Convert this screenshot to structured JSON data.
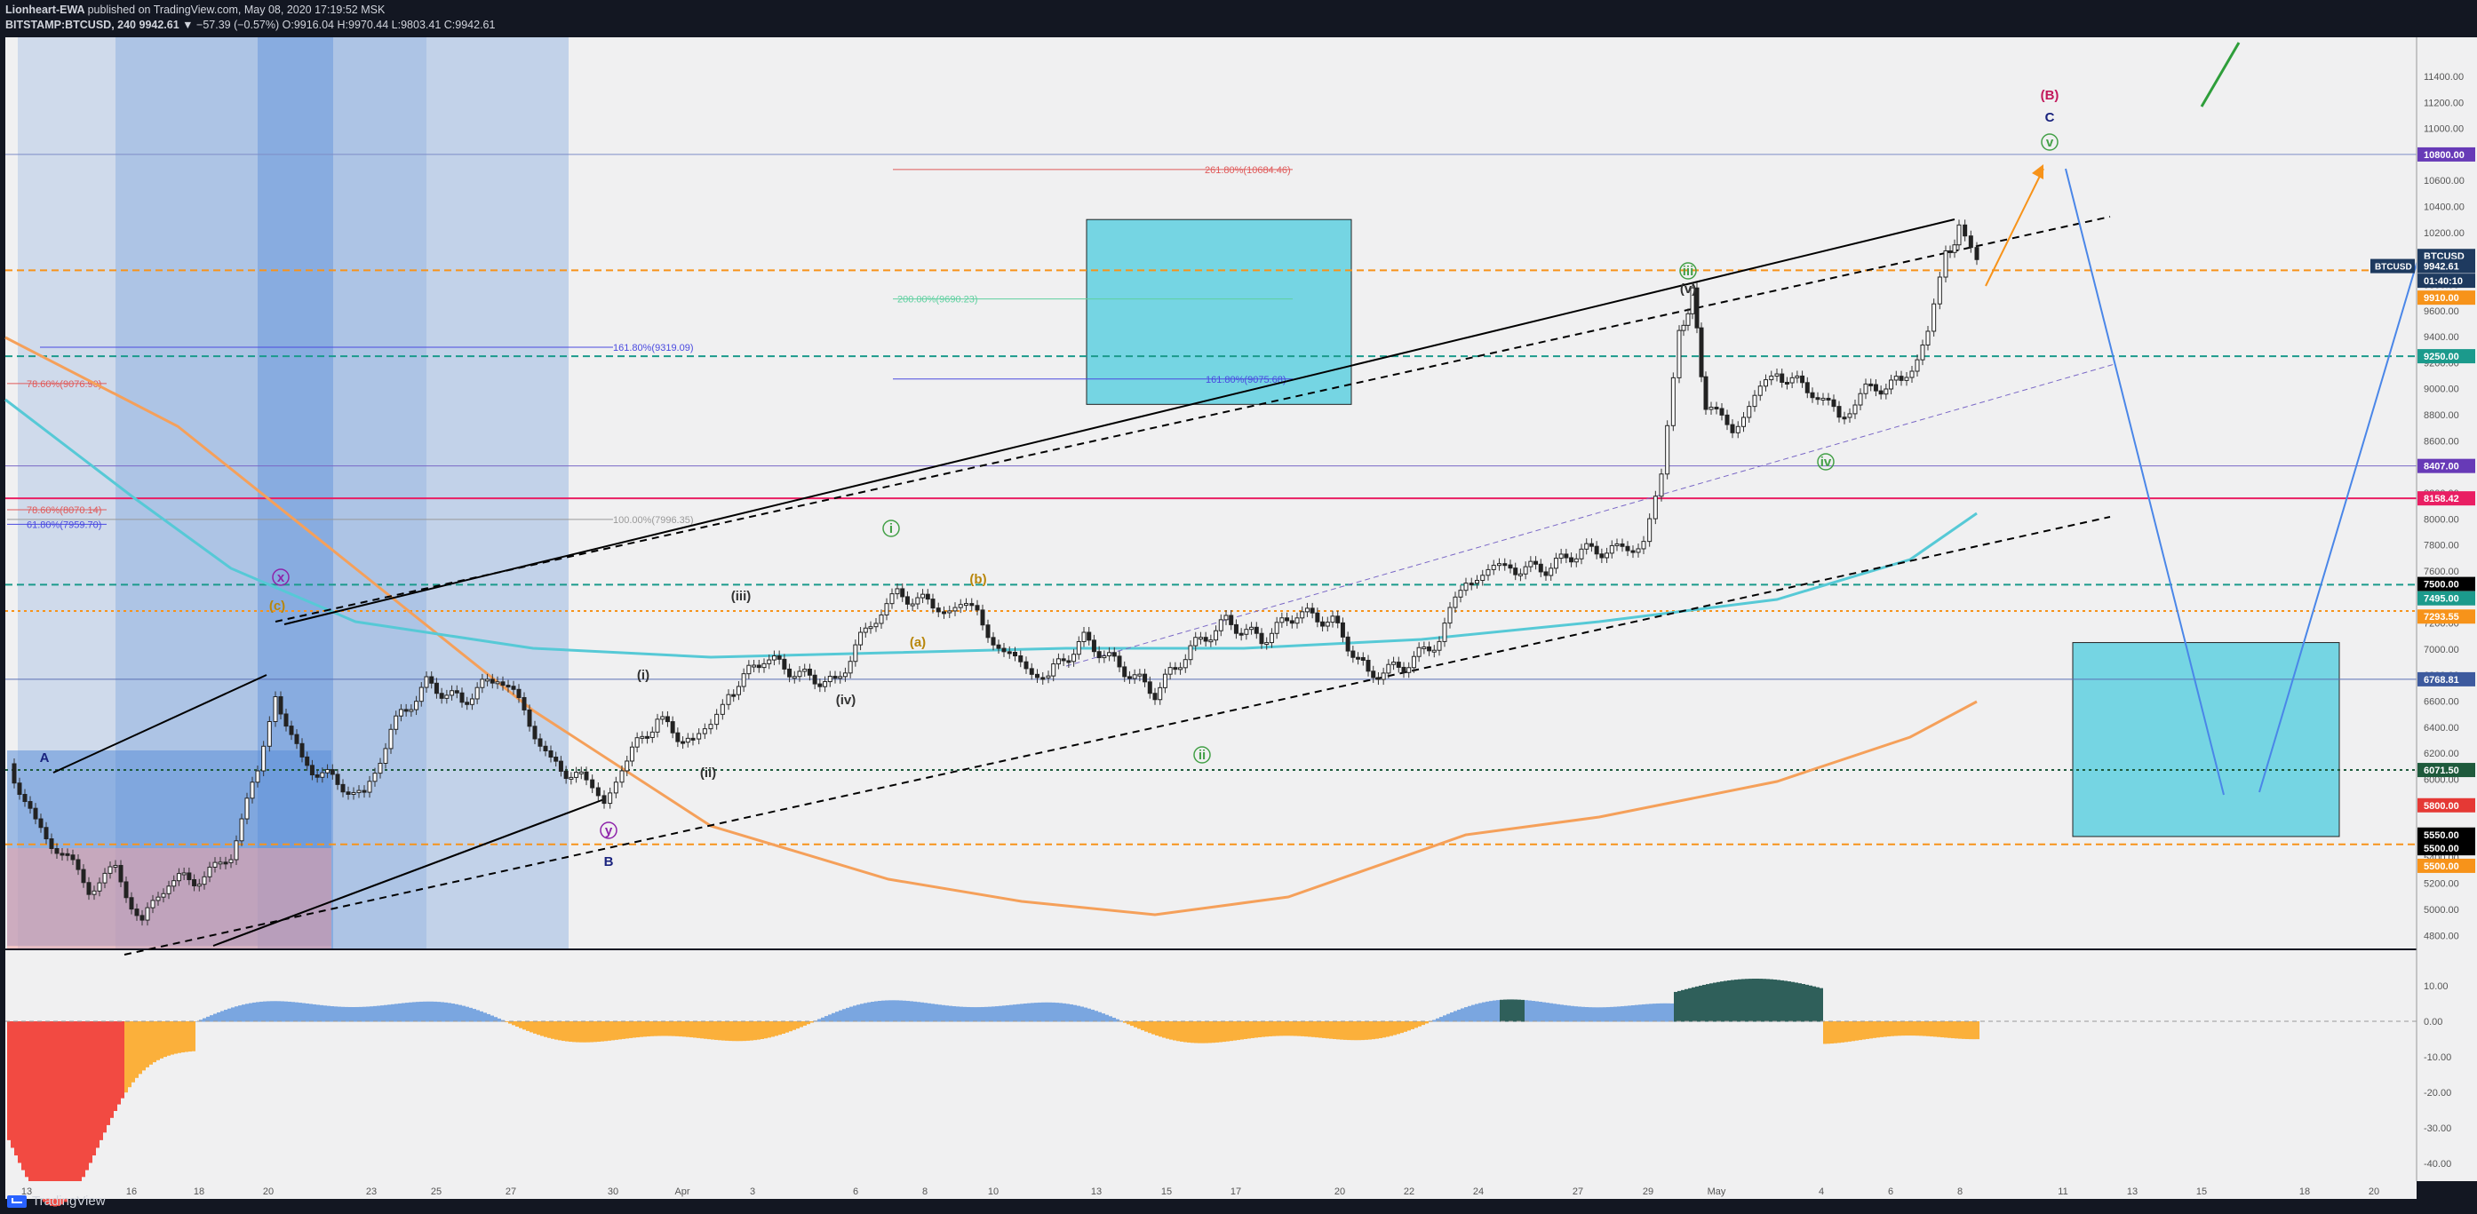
{
  "header": {
    "author": "Lionheart-EWA",
    "published": "published on TradingView.com, May 08, 2020 17:19:52 MSK",
    "symbol": "BITSTAMP:BTCUSD, 240",
    "last": "9942.61",
    "change": "▼ −57.39 (−0.57%)",
    "open_label": "O:",
    "open": "9916.04",
    "high_label": "H:",
    "high": "9970.44",
    "low_label": "L:",
    "low": "9803.41",
    "close_label": "C:",
    "close": "9942.61"
  },
  "footer": {
    "brand": "TradingView"
  },
  "colors": {
    "bg": "#131722",
    "plot_bg": "#f0f0f1",
    "up": "#26a69a",
    "down": "#ef5350",
    "blue_zone": "#5b8fd8",
    "cyan_box": "#5fd0e0",
    "orange_dash": "#f7931a",
    "teal_dash": "#1b9a8c",
    "ma_orange": "#f5a05a",
    "ma_cyan": "#56c9d6",
    "osc_up": "#2f5f5a",
    "osc_up_light": "#7aa6e0",
    "osc_down": "#f24a42",
    "osc_down_light": "#fbb03b"
  },
  "chart_data": {
    "type": "candlestick",
    "title": "BITSTAMP:BTCUSD, 240",
    "ylim": [
      4700,
      11700
    ],
    "y_ticks": [
      "11400.00",
      "11200.00",
      "11000.00",
      "10800.00",
      "10600.00",
      "10400.00",
      "10200.00",
      "10000.00",
      "9800.00",
      "9600.00",
      "9400.00",
      "9200.00",
      "9000.00",
      "8800.00",
      "8600.00",
      "8400.00",
      "8200.00",
      "8000.00",
      "7800.00",
      "7600.00",
      "7400.00",
      "7200.00",
      "7000.00",
      "6800.00",
      "6600.00",
      "6400.00",
      "6200.00",
      "6000.00",
      "5800.00",
      "5600.00",
      "5400.00",
      "5200.00",
      "5000.00",
      "4800.00"
    ],
    "x_ticks": [
      "13",
      "16",
      "18",
      "20",
      "23",
      "25",
      "27",
      "30",
      "Apr",
      "3",
      "6",
      "8",
      "10",
      "13",
      "15",
      "17",
      "20",
      "22",
      "24",
      "27",
      "29",
      "May",
      "4",
      "6",
      "8",
      "11",
      "13",
      "15",
      "18",
      "20"
    ],
    "price_marks": [
      {
        "label": "10800.00",
        "value": 10800,
        "color": "#673ab7"
      },
      {
        "label": "BTCUSD",
        "value": 10020,
        "color": "#1e3a5f"
      },
      {
        "label": "9942.61",
        "value": 9942.61,
        "color": "#1e3a5f"
      },
      {
        "label": "01:40:10",
        "value": 9830,
        "color": "#1e3a5f"
      },
      {
        "label": "9910.00",
        "value": 9700,
        "color": "#f7931a"
      },
      {
        "label": "9250.00",
        "value": 9250,
        "color": "#1b9a8c"
      },
      {
        "label": "8407.00",
        "value": 8407,
        "color": "#673ab7"
      },
      {
        "label": "8158.42",
        "value": 8158,
        "color": "#e91e63"
      },
      {
        "label": "7500.00",
        "value": 7500,
        "color": "#000000"
      },
      {
        "label": "7495.00",
        "value": 7390,
        "color": "#1b9a8c"
      },
      {
        "label": "7293.55",
        "value": 7250,
        "color": "#f7931a"
      },
      {
        "label": "6768.81",
        "value": 6768,
        "color": "#3d5a9e"
      },
      {
        "label": "6071.50",
        "value": 6071,
        "color": "#1e5a3c"
      },
      {
        "label": "5800.00",
        "value": 5800,
        "color": "#e53935"
      },
      {
        "label": "5550.00",
        "value": 5575,
        "color": "#000000"
      },
      {
        "label": "5500.00",
        "value": 5470,
        "color": "#000000"
      },
      {
        "label": "5500.00",
        "value": 5335,
        "color": "#f7931a"
      }
    ],
    "fib_levels": [
      {
        "label": "261.80%(10684.46)",
        "value": 10684,
        "color": "#e05a5a"
      },
      {
        "label": "200.00%(9690.23)",
        "value": 9690,
        "color": "#5fd0a0"
      },
      {
        "label": "161.80%(9319.09)",
        "value": 9319,
        "color": "#4a4ae0"
      },
      {
        "label": "161.80%(9075.68)",
        "value": 9075,
        "color": "#4a4ae0"
      },
      {
        "label": "78.60%(9076.90)",
        "value": 9040,
        "color": "#e05a5a"
      },
      {
        "label": "100.00%(7996.35)",
        "value": 7996,
        "color": "#999999"
      },
      {
        "label": "78.60%(8070.14)",
        "value": 8070,
        "color": "#e05a5a"
      },
      {
        "label": "61.80%(7959.70)",
        "value": 7959,
        "color": "#4a4ae0"
      }
    ],
    "wave_labels": [
      {
        "text": "(B)",
        "color": "#c2185b"
      },
      {
        "text": "C",
        "color": "#1a237e"
      },
      {
        "text": "v",
        "color": "#43a047"
      },
      {
        "text": "iii",
        "color": "#43a047"
      },
      {
        "text": "(v)",
        "color": "#333333"
      },
      {
        "text": "iv",
        "color": "#43a047"
      },
      {
        "text": "(iii)",
        "color": "#333333"
      },
      {
        "text": "(iv)",
        "color": "#333333"
      },
      {
        "text": "(i)",
        "color": "#333333"
      },
      {
        "text": "(ii)",
        "color": "#333333"
      },
      {
        "text": "(c)",
        "color": "#b8860b"
      },
      {
        "text": "ii",
        "color": "#43a047"
      },
      {
        "text": "i",
        "color": "#43a047"
      },
      {
        "text": "(b)",
        "color": "#b8860b"
      },
      {
        "text": "(a)",
        "color": "#b8860b"
      },
      {
        "text": "x",
        "color": "#8e24aa"
      },
      {
        "text": "y",
        "color": "#8e24aa"
      },
      {
        "text": "B",
        "color": "#1a237e"
      },
      {
        "text": "A",
        "color": "#1a237e"
      }
    ],
    "osc_ticks": [
      "10.00",
      "0.00",
      "-10.00",
      "-20.00",
      "-30.00",
      "-40.00"
    ],
    "osc_ylim": [
      -45,
      20
    ]
  }
}
